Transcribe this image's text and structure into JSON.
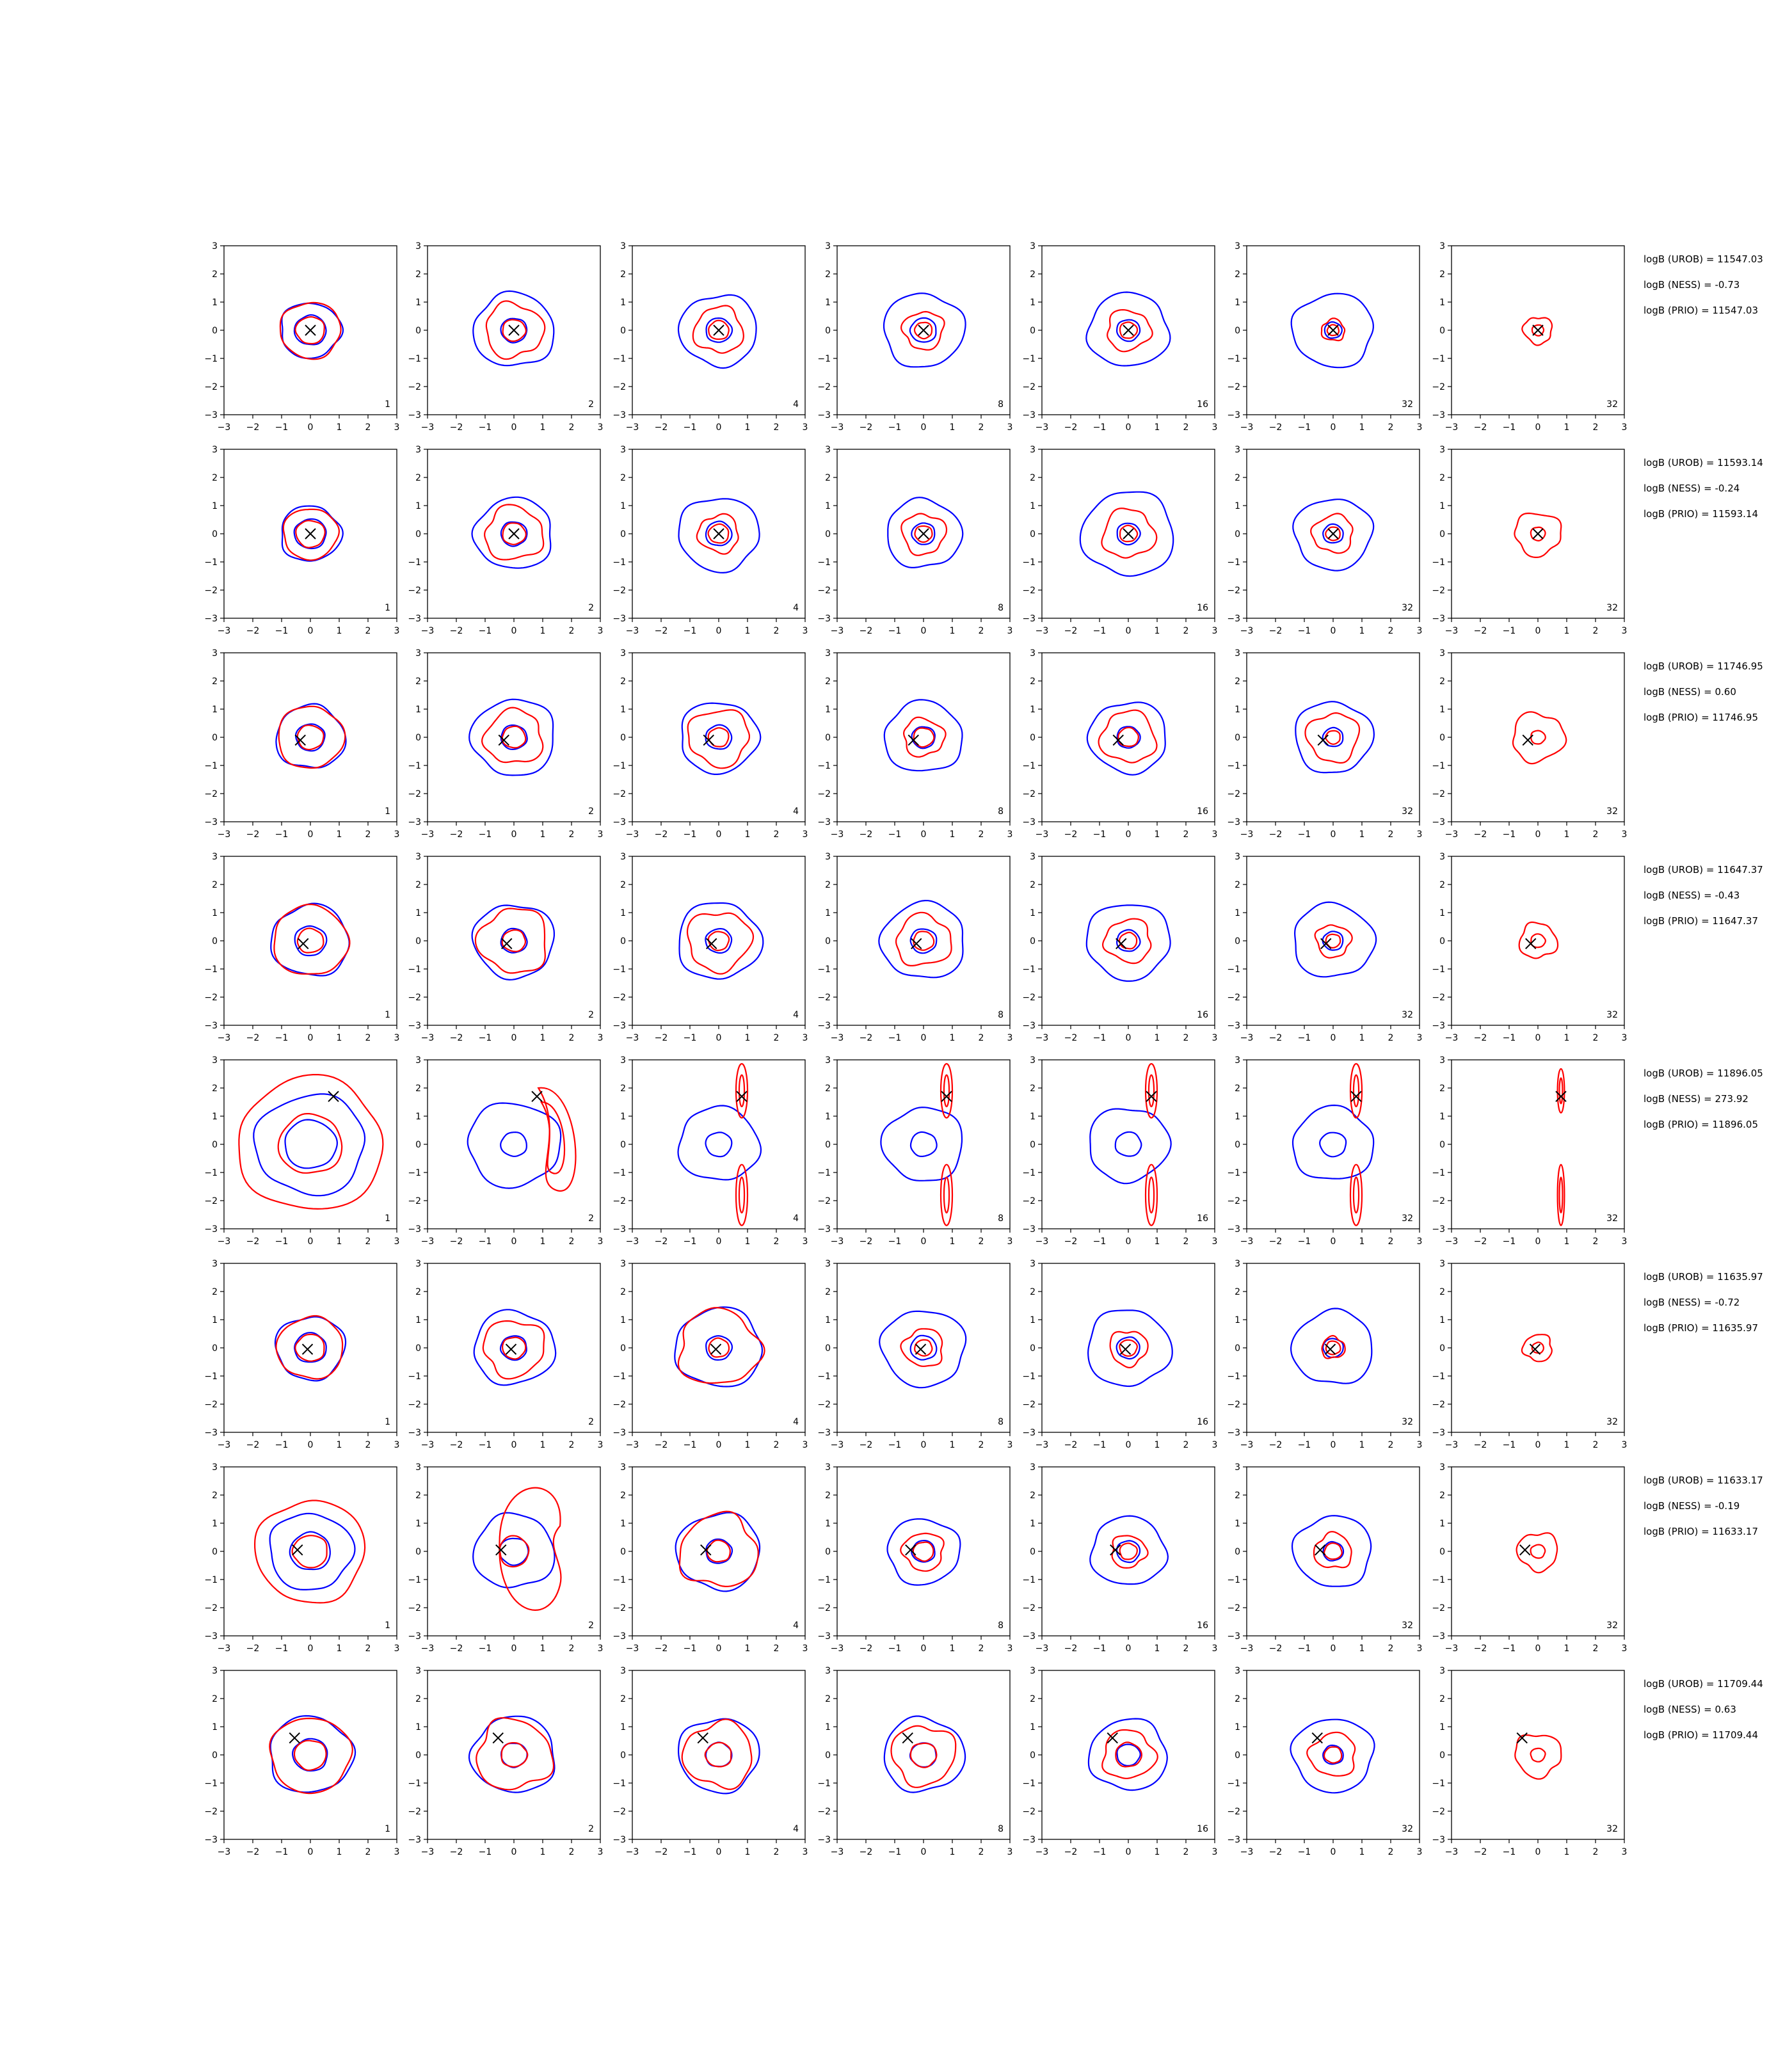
{
  "chart_data": {
    "type": "contour",
    "title": "",
    "xlabel": "",
    "ylabel": "",
    "xlim": [
      -3,
      3
    ],
    "ylim": [
      -3,
      3
    ],
    "xticks": [
      "−3",
      "−2",
      "−1",
      "0",
      "1",
      "2",
      "3"
    ],
    "yticks": [
      "3",
      "2",
      "1",
      "0",
      "−1",
      "−2",
      "−3"
    ],
    "grid": false,
    "colors": {
      "blue": "#0000ff",
      "red": "#ff0000",
      "marker": "#000000"
    },
    "column_labels": [
      "1",
      "2",
      "4",
      "8",
      "16",
      "32",
      "32"
    ],
    "rows": [
      {
        "marker": [
          0,
          0
        ],
        "annotations": [
          "logB (UROB) = 11547.03",
          "logB (NESS) = -0.73",
          "logB (PRIO) = 11547.03"
        ],
        "panels": [
          {
            "blue": [
              1.05,
              0.55
            ],
            "red": [
              1.05,
              0.5
            ]
          },
          {
            "blue": [
              1.4,
              0.45
            ],
            "red": [
              1.0,
              0.4
            ]
          },
          {
            "blue": [
              1.35,
              0.45
            ],
            "red": [
              0.85,
              0.35
            ]
          },
          {
            "blue": [
              1.4,
              0.45
            ],
            "red": [
              0.7,
              0.3
            ]
          },
          {
            "blue": [
              1.4,
              0.4
            ],
            "red": [
              0.75,
              0.3
            ]
          },
          {
            "blue": [
              1.4,
              0.3
            ],
            "red": [
              0.4,
              0.2
            ]
          },
          {
            "blue": [],
            "red": [
              0.5,
              0.2
            ]
          }
        ]
      },
      {
        "marker": [
          0,
          0
        ],
        "annotations": [
          "logB (UROB) = 11593.14",
          "logB (NESS) = -0.24",
          "logB (PRIO) = 11593.14"
        ],
        "panels": [
          {
            "blue": [
              1.05,
              0.55
            ],
            "red": [
              0.95,
              0.5
            ]
          },
          {
            "blue": [
              1.35,
              0.45
            ],
            "red": [
              1.0,
              0.4
            ]
          },
          {
            "blue": [
              1.4,
              0.45
            ],
            "red": [
              0.7,
              0.35
            ]
          },
          {
            "blue": [
              1.3,
              0.4
            ],
            "red": [
              0.75,
              0.3
            ]
          },
          {
            "blue": [
              1.6,
              0.4
            ],
            "red": [
              0.9,
              0.3
            ]
          },
          {
            "blue": [
              1.35,
              0.35
            ],
            "red": [
              0.7,
              0.25
            ]
          },
          {
            "blue": [],
            "red": [
              0.8,
              0.25
            ]
          }
        ]
      },
      {
        "marker": [
          -0.35,
          -0.1
        ],
        "annotations": [
          "logB (UROB) = 11746.95",
          "logB (NESS) = 0.60",
          "logB (PRIO) = 11746.95"
        ],
        "panels": [
          {
            "blue": [
              1.2,
              0.5
            ],
            "red": [
              1.15,
              0.45
            ]
          },
          {
            "blue": [
              1.45,
              0.45
            ],
            "red": [
              1.0,
              0.4
            ]
          },
          {
            "blue": [
              1.35,
              0.45
            ],
            "red": [
              1.05,
              0.35
            ]
          },
          {
            "blue": [
              1.35,
              0.4
            ],
            "red": [
              0.7,
              0.35
            ]
          },
          {
            "blue": [
              1.35,
              0.4
            ],
            "red": [
              0.95,
              0.35
            ]
          },
          {
            "blue": [
              1.35,
              0.35
            ],
            "red": [
              0.9,
              0.25
            ]
          },
          {
            "blue": [],
            "red": [
              0.9,
              0.25
            ]
          }
        ]
      },
      {
        "marker": [
          -0.25,
          -0.1
        ],
        "annotations": [
          "logB (UROB) = 11647.37",
          "logB (NESS) = -0.43",
          "logB (PRIO) = 11647.37"
        ],
        "panels": [
          {
            "blue": [
              1.35,
              0.55
            ],
            "red": [
              1.3,
              0.45
            ]
          },
          {
            "blue": [
              1.4,
              0.45
            ],
            "red": [
              1.2,
              0.4
            ]
          },
          {
            "blue": [
              1.45,
              0.45
            ],
            "red": [
              1.1,
              0.35
            ]
          },
          {
            "blue": [
              1.45,
              0.45
            ],
            "red": [
              0.95,
              0.35
            ]
          },
          {
            "blue": [
              1.45,
              0.4
            ],
            "red": [
              0.8,
              0.3
            ]
          },
          {
            "blue": [
              1.4,
              0.35
            ],
            "red": [
              0.6,
              0.25
            ]
          },
          {
            "blue": [],
            "red": [
              0.65,
              0.25
            ]
          }
        ]
      },
      {
        "marker": [
          0.8,
          1.7
        ],
        "annotations": [
          "logB (UROB) = 11896.05",
          "logB (NESS) = 273.92",
          "logB (PRIO) = 11896.05"
        ],
        "panels": [
          {
            "blue": [
              1.9,
              0.9
            ],
            "red": [
              2.5,
              1.1
            ]
          },
          {
            "blue": [
              1.6,
              0.45
            ],
            "red": []
          },
          {
            "blue": [
              1.4,
              0.45
            ],
            "red": []
          },
          {
            "blue": [
              1.4,
              0.45
            ],
            "red": []
          },
          {
            "blue": [
              1.4,
              0.45
            ],
            "red": []
          },
          {
            "blue": [
              1.4,
              0.45
            ],
            "red": []
          },
          {
            "blue": [],
            "red": []
          }
        ]
      },
      {
        "marker": [
          -0.1,
          -0.05
        ],
        "annotations": [
          "logB (UROB) = 11635.97",
          "logB (NESS) = -0.72",
          "logB (PRIO) = 11635.97"
        ],
        "panels": [
          {
            "blue": [
              1.2,
              0.55
            ],
            "red": [
              1.15,
              0.5
            ]
          },
          {
            "blue": [
              1.4,
              0.45
            ],
            "red": [
              1.05,
              0.4
            ]
          },
          {
            "blue": [
              1.5,
              0.45
            ],
            "red": [
              1.4,
              0.35
            ]
          },
          {
            "blue": [
              1.45,
              0.45
            ],
            "red": [
              0.7,
              0.3
            ]
          },
          {
            "blue": [
              1.45,
              0.4
            ],
            "red": [
              0.65,
              0.3
            ]
          },
          {
            "blue": [
              1.4,
              0.35
            ],
            "red": [
              0.4,
              0.25
            ]
          },
          {
            "blue": [],
            "red": [
              0.5,
              0.2
            ]
          }
        ]
      },
      {
        "marker": [
          -0.45,
          0.05
        ],
        "annotations": [
          "logB (UROB) = 11633.17",
          "logB (NESS) = -0.19",
          "logB (PRIO) = 11633.17"
        ],
        "panels": [
          {
            "blue": [
              1.45,
              0.7
            ],
            "red": [
              1.9,
              0.6
            ]
          },
          {
            "blue": [
              1.4,
              0.5
            ],
            "red": []
          },
          {
            "blue": [
              1.45,
              0.45
            ],
            "red": [
              1.35,
              0.4
            ]
          },
          {
            "blue": [
              1.25,
              0.4
            ],
            "red": [
              0.7,
              0.35
            ]
          },
          {
            "blue": [
              1.3,
              0.4
            ],
            "red": [
              0.6,
              0.3
            ]
          },
          {
            "blue": [
              1.35,
              0.35
            ],
            "red": [
              0.65,
              0.3
            ]
          },
          {
            "blue": [],
            "red": [
              0.7,
              0.25
            ]
          }
        ]
      },
      {
        "marker": [
          -0.55,
          0.6
        ],
        "annotations": [
          "logB (UROB) = 11709.44",
          "logB (NESS) = 0.63",
          "logB (PRIO) = 11709.44"
        ],
        "panels": [
          {
            "blue": [
              1.45,
              0.6
            ],
            "red": [
              1.4,
              0.55
            ]
          },
          {
            "blue": [
              1.45,
              0.45
            ],
            "red": [
              1.3,
              0.45
            ]
          },
          {
            "blue": [
              1.4,
              0.45
            ],
            "red": [
              1.2,
              0.45
            ]
          },
          {
            "blue": [
              1.4,
              0.45
            ],
            "red": [
              1.1,
              0.45
            ]
          },
          {
            "blue": [
              1.35,
              0.4
            ],
            "red": [
              0.9,
              0.45
            ]
          },
          {
            "blue": [
              1.4,
              0.35
            ],
            "red": [
              0.8,
              0.3
            ]
          },
          {
            "blue": [],
            "red": [
              0.8,
              0.25
            ]
          }
        ]
      }
    ]
  }
}
